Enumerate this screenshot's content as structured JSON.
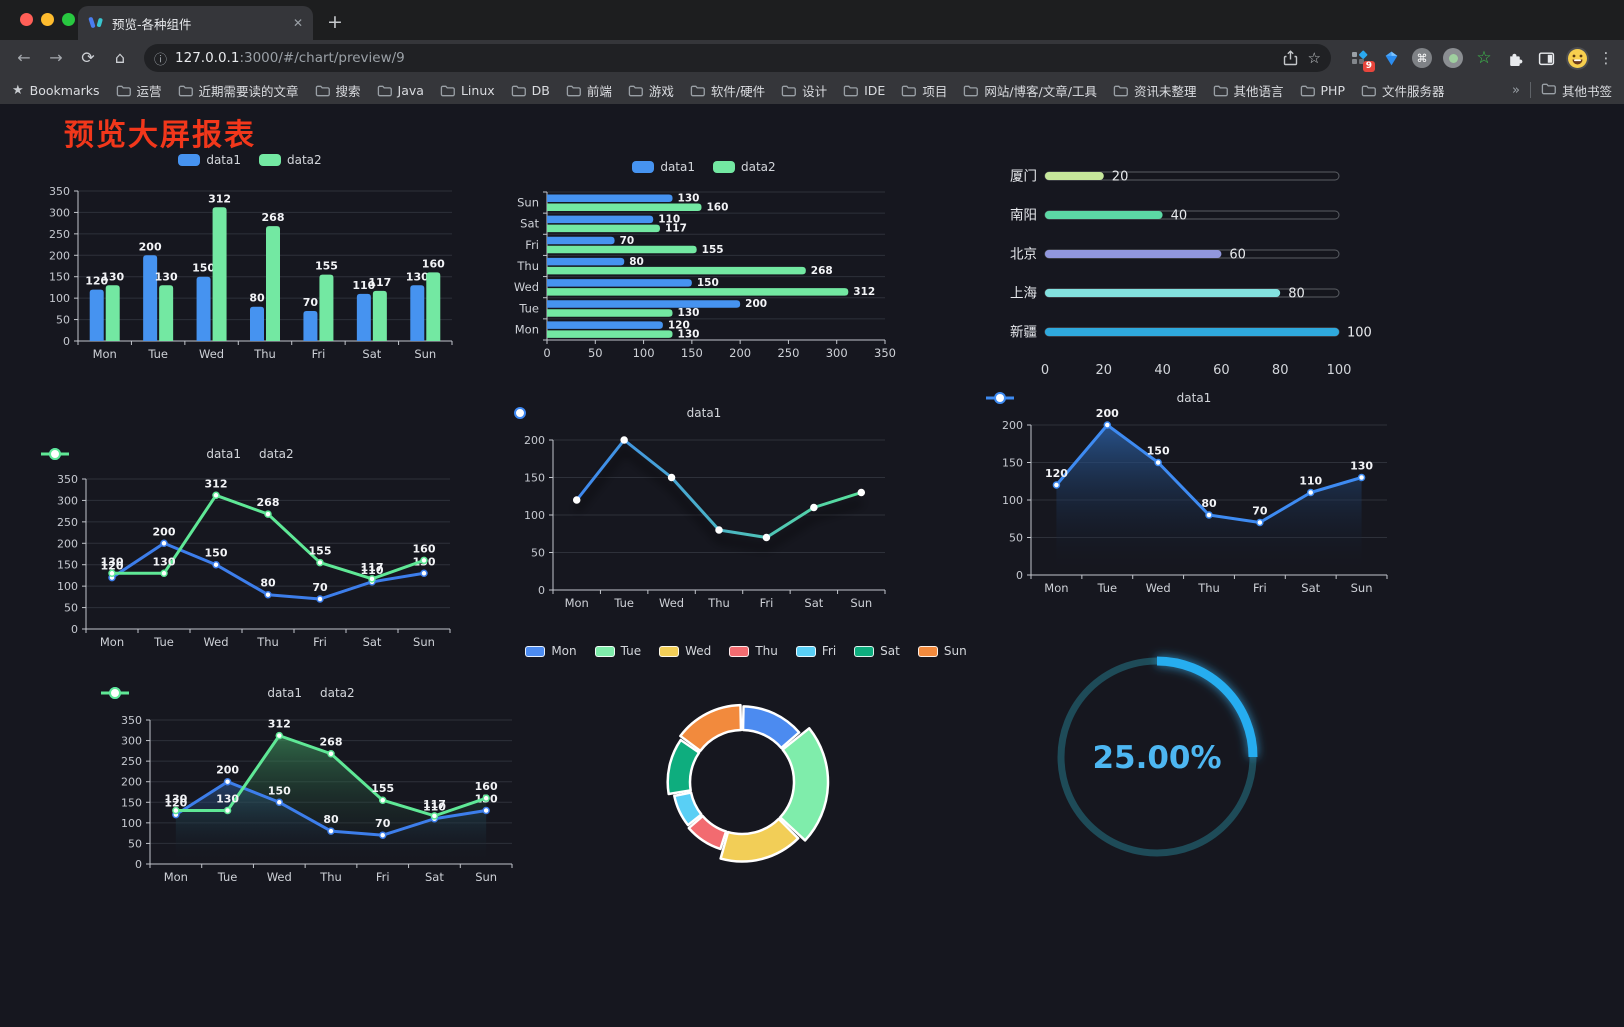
{
  "browser": {
    "tab_title": "预览-各种组件",
    "url_host": "127.0.0.1",
    "url_rest": ":3000/#/chart/preview/9",
    "extension_badge": "9",
    "bookmarks_label": "Bookmarks",
    "bookmarks": [
      "运营",
      "近期需要读的文章",
      "搜索",
      "Java",
      "Linux",
      "DB",
      "前端",
      "游戏",
      "软件/硬件",
      "设计",
      "IDE",
      "项目",
      "网站/博客/文章/工具",
      "资讯未整理",
      "其他语言",
      "PHP",
      "文件服务器"
    ],
    "bookmarks_overflow": "»",
    "other_bookmarks": "其他书签"
  },
  "icons": {
    "close": "✕",
    "plus": "+",
    "back": "←",
    "forward": "→",
    "reload": "⟳",
    "home": "⌂",
    "info": "ⓘ",
    "bookmark_star": "☆",
    "menu": "⋮",
    "star_filled": "★",
    "command": "⌘"
  },
  "page": {
    "title": "预览大屏报表",
    "title_color": "#f2371b",
    "background": "#16171f"
  },
  "chart_data": [
    {
      "id": "c1",
      "type": "bar",
      "categories": [
        "Mon",
        "Tue",
        "Wed",
        "Thu",
        "Fri",
        "Sat",
        "Sun"
      ],
      "ymax": 350,
      "ystep": 50,
      "series": [
        {
          "name": "data1",
          "color": "#4693F0",
          "values": [
            120,
            200,
            150,
            80,
            70,
            110,
            130
          ]
        },
        {
          "name": "data2",
          "color": "#73E8A2",
          "values": [
            130,
            130,
            312,
            268,
            155,
            117,
            160
          ]
        }
      ]
    },
    {
      "id": "c2",
      "type": "hbar",
      "categories": [
        "Mon",
        "Tue",
        "Wed",
        "Thu",
        "Fri",
        "Sat",
        "Sun"
      ],
      "xmax": 350,
      "xstep": 50,
      "series": [
        {
          "name": "data1",
          "color": "#4693F0",
          "values": [
            120,
            200,
            150,
            80,
            70,
            110,
            130
          ]
        },
        {
          "name": "data2",
          "color": "#73E8A2",
          "values": [
            130,
            130,
            312,
            268,
            155,
            117,
            160
          ]
        }
      ]
    },
    {
      "id": "c3",
      "type": "progress",
      "xticks": [
        0,
        20,
        40,
        60,
        80,
        100
      ],
      "items": [
        {
          "label": "厦门",
          "value": 20,
          "color": "#C6E79B"
        },
        {
          "label": "南阳",
          "value": 40,
          "color": "#5CD8A5"
        },
        {
          "label": "北京",
          "value": 60,
          "color": "#9197DD"
        },
        {
          "label": "上海",
          "value": 80,
          "color": "#83E1DF"
        },
        {
          "label": "新疆",
          "value": 100,
          "color": "#2FA9DD"
        }
      ]
    },
    {
      "id": "c4",
      "type": "line",
      "categories": [
        "Mon",
        "Tue",
        "Wed",
        "Thu",
        "Fri",
        "Sat",
        "Sun"
      ],
      "ymax": 350,
      "ystep": 50,
      "labels": true,
      "series": [
        {
          "name": "data1",
          "color": "#3D7EEB",
          "values": [
            120,
            200,
            150,
            80,
            70,
            110,
            130
          ]
        },
        {
          "name": "data2",
          "color": "#5FE896",
          "values": [
            130,
            130,
            312,
            268,
            155,
            117,
            160
          ]
        }
      ]
    },
    {
      "id": "c5",
      "type": "line",
      "categories": [
        "Mon",
        "Tue",
        "Wed",
        "Thu",
        "Fri",
        "Sat",
        "Sun"
      ],
      "ymax": 200,
      "ystep": 50,
      "labels": false,
      "shadow": true,
      "series": [
        {
          "name": "data1",
          "gradient": [
            "#3E87F0",
            "#58E29B"
          ],
          "values": [
            120,
            200,
            150,
            80,
            70,
            110,
            130
          ]
        }
      ]
    },
    {
      "id": "c6",
      "type": "line",
      "categories": [
        "Mon",
        "Tue",
        "Wed",
        "Thu",
        "Fri",
        "Sat",
        "Sun"
      ],
      "ymax": 200,
      "ystep": 50,
      "labels": true,
      "series": [
        {
          "name": "data1",
          "color": "#3E8BF2",
          "area": [
            "rgba(43,93,158,0.85)",
            "rgba(16,19,28,0)"
          ],
          "values": [
            120,
            200,
            150,
            80,
            70,
            110,
            130
          ]
        }
      ]
    },
    {
      "id": "c7",
      "type": "line",
      "categories": [
        "Mon",
        "Tue",
        "Wed",
        "Thu",
        "Fri",
        "Sat",
        "Sun"
      ],
      "ymax": 350,
      "ystep": 50,
      "labels": true,
      "series": [
        {
          "name": "data1",
          "color": "#3D7EEB",
          "area": [
            "rgba(45,90,150,0.6)",
            "rgba(16,19,28,0)"
          ],
          "values": [
            120,
            200,
            150,
            80,
            70,
            110,
            130
          ]
        },
        {
          "name": "data2",
          "color": "#5FE896",
          "area": [
            "rgba(62,150,94,0.65)",
            "rgba(16,19,28,0)"
          ],
          "values": [
            130,
            130,
            312,
            268,
            155,
            117,
            160
          ]
        }
      ]
    },
    {
      "id": "c8",
      "type": "donut",
      "items": [
        {
          "label": "Mon",
          "value": 120,
          "color": "#4C8BF0"
        },
        {
          "label": "Tue",
          "value": 200,
          "color": "#7FEDAB"
        },
        {
          "label": "Wed",
          "value": 150,
          "color": "#F2CE57"
        },
        {
          "label": "Thu",
          "value": 80,
          "color": "#F26B70"
        },
        {
          "label": "Fri",
          "value": 70,
          "color": "#59CFF5"
        },
        {
          "label": "Sat",
          "value": 110,
          "color": "#0EAD7E"
        },
        {
          "label": "Sun",
          "value": 130,
          "color": "#F28A3D"
        }
      ]
    },
    {
      "id": "c9",
      "type": "gauge",
      "value": 25,
      "text": "25.00%",
      "track_color": "#1E4B58",
      "bar_color": "#26ADF0",
      "text_color": "#4DB7F2"
    }
  ]
}
